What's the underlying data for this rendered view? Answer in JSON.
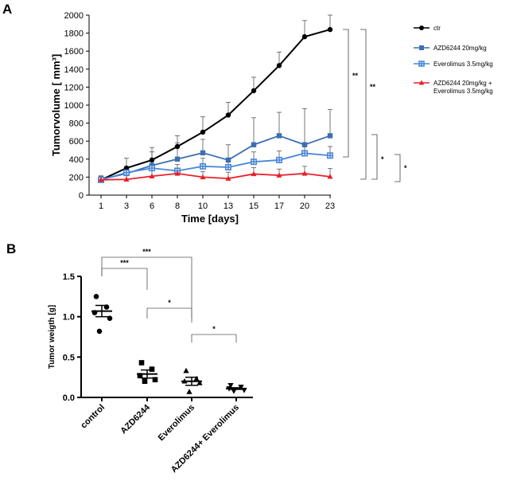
{
  "panels": {
    "a": "A",
    "b": "B"
  },
  "chart_data": [
    {
      "type": "line",
      "panel": "A",
      "xlabel": "Time [days]",
      "ylabel": "Tumorvolume [ mm³]",
      "x": [
        1,
        3,
        6,
        8,
        10,
        13,
        15,
        17,
        20,
        23
      ],
      "ylim": [
        0,
        2000
      ],
      "yticks": [
        0,
        200,
        400,
        600,
        800,
        1000,
        1200,
        1400,
        1600,
        1800,
        2000
      ],
      "legend_position": "right",
      "series": [
        {
          "name": "ctr",
          "color": "#000000",
          "marker": "circle",
          "values": [
            170,
            300,
            390,
            540,
            700,
            890,
            1160,
            1440,
            1760,
            1840
          ],
          "error": [
            40,
            110,
            140,
            120,
            170,
            140,
            150,
            150,
            180,
            160
          ]
        },
        {
          "name": "AZD6244 20mg/kg",
          "color": "#3d6fb0",
          "marker": "square",
          "values": [
            175,
            240,
            330,
            400,
            470,
            390,
            560,
            660,
            560,
            660
          ],
          "error": [
            40,
            80,
            150,
            180,
            150,
            170,
            300,
            260,
            400,
            290
          ]
        },
        {
          "name": "Everolimus 3.5mg/kg",
          "color": "#4a87d8",
          "marker": "cross",
          "values": [
            170,
            250,
            300,
            270,
            320,
            310,
            370,
            390,
            465,
            440
          ],
          "error": [
            40,
            40,
            80,
            70,
            90,
            70,
            110,
            100,
            120,
            100
          ]
        },
        {
          "name": "AZD6244 20mg/kg + Everolimus 3.5mg/kg",
          "legend_lines": [
            "AZD6244 20mg/kg +",
            "Everolimus 3.5mg/kg"
          ],
          "color": "#e8212b",
          "marker": "triangle",
          "values": [
            170,
            175,
            210,
            240,
            200,
            185,
            235,
            220,
            240,
            205
          ],
          "error": [
            30,
            40,
            60,
            60,
            60,
            70,
            70,
            70,
            80,
            90
          ]
        }
      ],
      "annotations": [
        "**",
        "**",
        "*",
        "*"
      ]
    },
    {
      "type": "scatter",
      "panel": "B",
      "ylabel": "Tumor weigth [g]",
      "ylim": [
        0,
        1.5
      ],
      "yticks": [
        "0.0",
        "0.5",
        "1.0",
        "1.5"
      ],
      "categories": [
        "control",
        "AZD6244",
        "Everolimus",
        "AZD6244+ Everolimus"
      ],
      "groups": [
        {
          "marker": "circle",
          "points": [
            1.25,
            1.12,
            1.05,
            0.98,
            0.82
          ],
          "mean": 1.07,
          "sem": 0.07
        },
        {
          "marker": "square",
          "points": [
            0.43,
            0.35,
            0.27,
            0.22,
            0.2
          ],
          "mean": 0.29,
          "sem": 0.05
        },
        {
          "marker": "triangle",
          "points": [
            0.33,
            0.23,
            0.2,
            0.18,
            0.07
          ],
          "mean": 0.2,
          "sem": 0.05
        },
        {
          "marker": "invtriangle",
          "points": [
            0.15,
            0.13,
            0.11,
            0.09,
            0.08
          ],
          "mean": 0.11,
          "sem": 0.01
        }
      ],
      "comparisons": [
        {
          "from": 0,
          "to": 1,
          "label": "***"
        },
        {
          "from": 0,
          "to": 2,
          "label": "***"
        },
        {
          "from": 1,
          "to": 2,
          "label": "*"
        },
        {
          "from": 2,
          "to": 3,
          "label": "*"
        }
      ]
    }
  ]
}
